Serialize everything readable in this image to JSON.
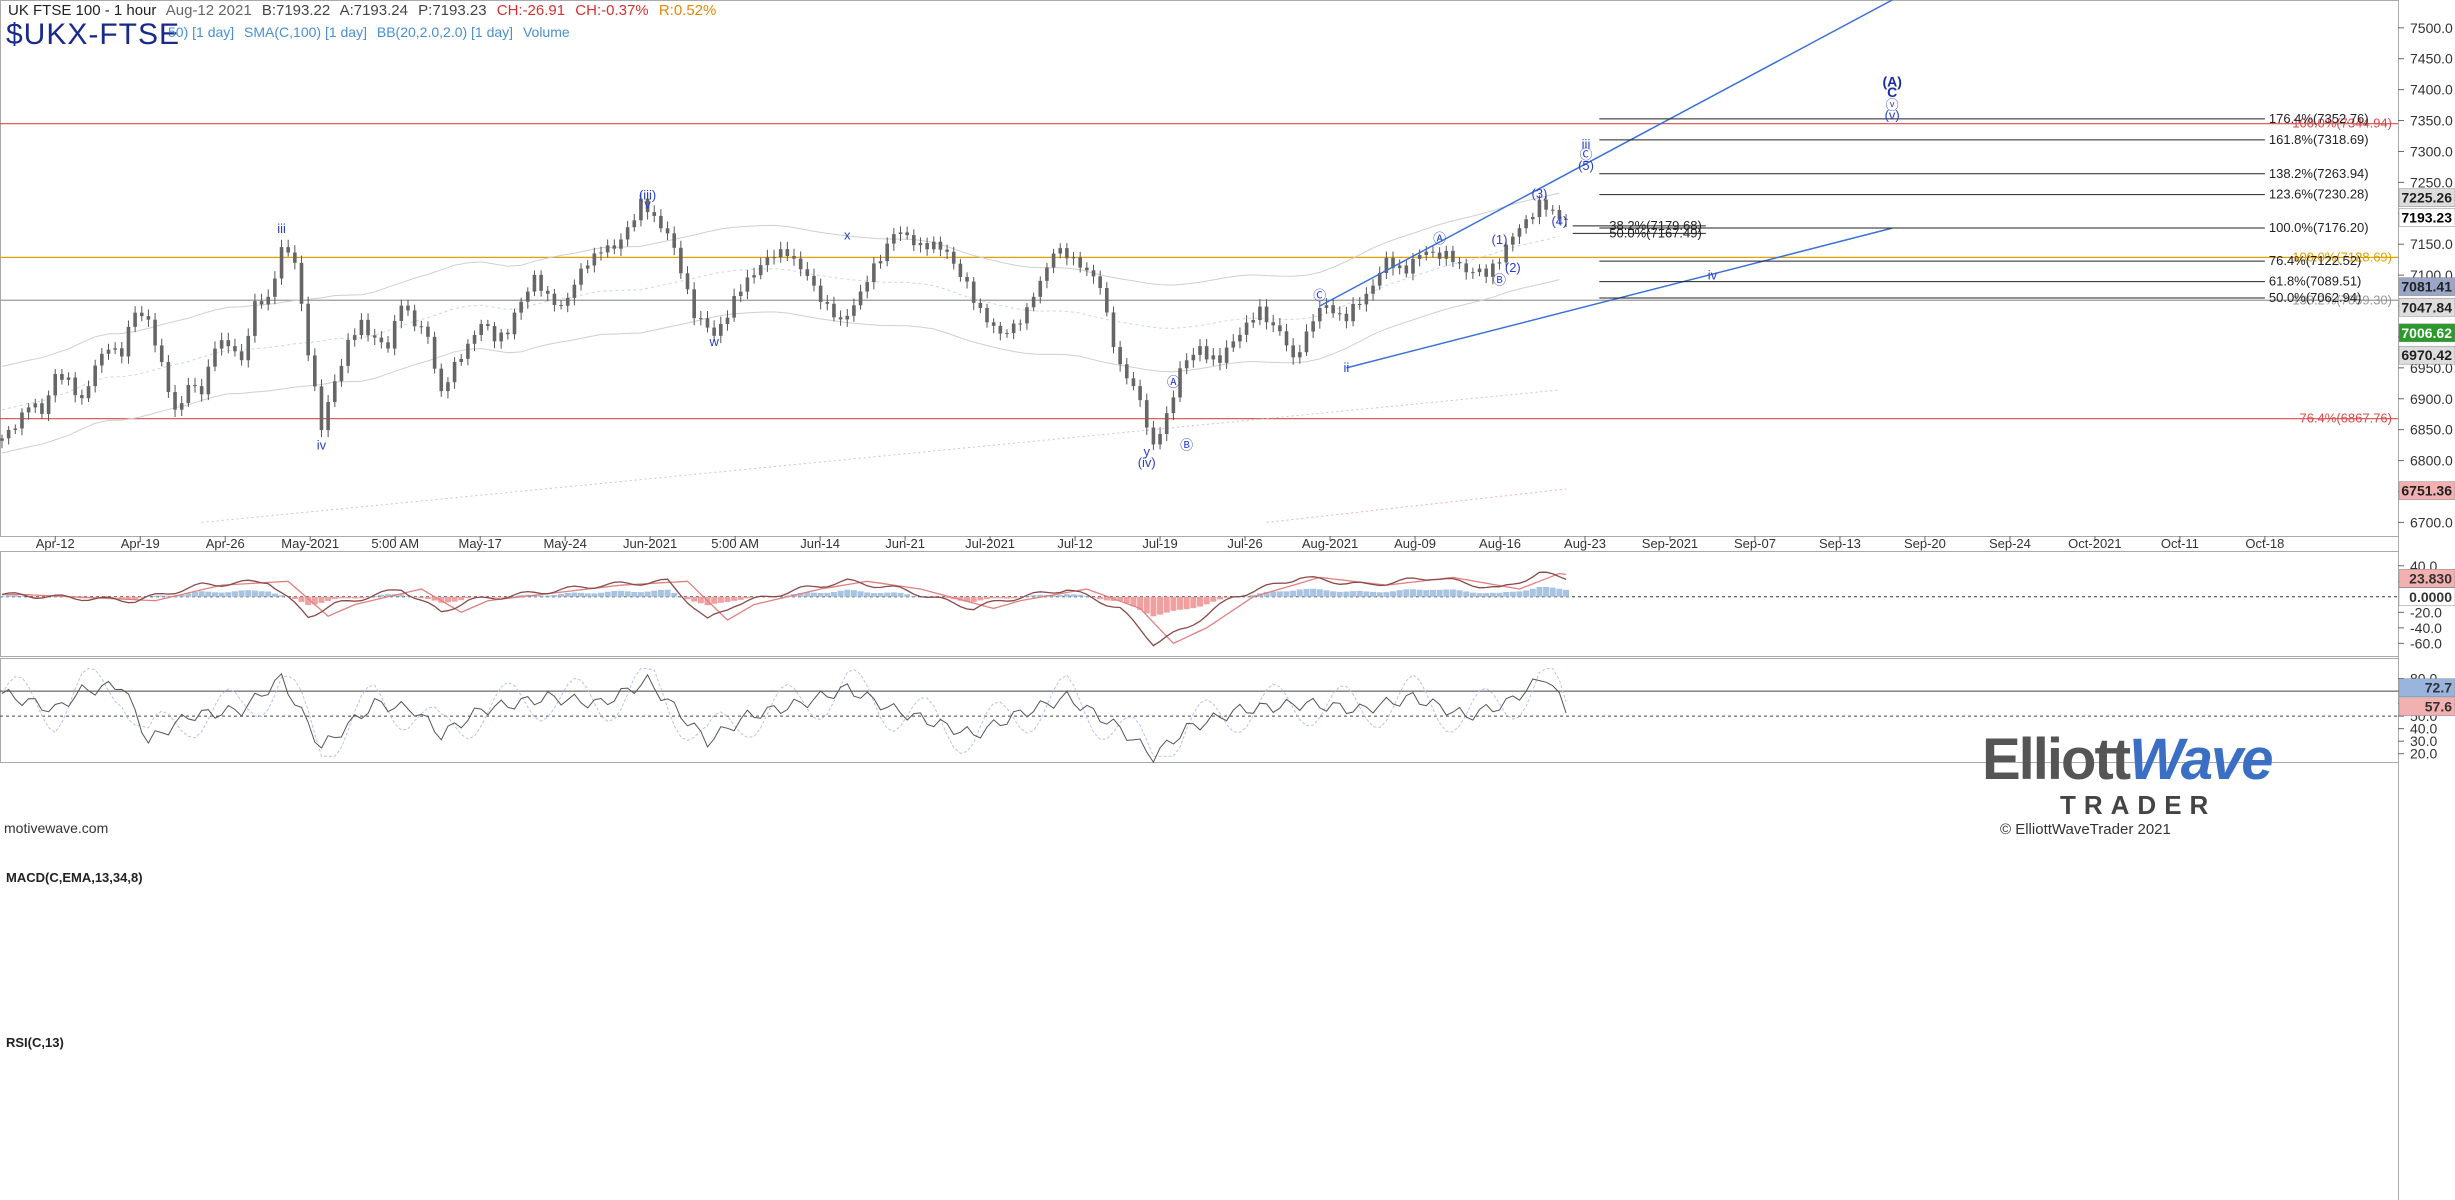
{
  "header": {
    "title": "UK FTSE 100 - 1 hour",
    "date": "Aug-12 2021",
    "bid": "B:7193.22",
    "ask": "A:7193.24",
    "price": "P:7193.23",
    "change": "CH:-26.91",
    "change_pct": "CH:-0.37%",
    "range": "R:0.52%",
    "symbol": "$UKX-FTSE"
  },
  "indicators": [
    "50) [1 day]",
    "SMA(C,100) [1 day]",
    "BB(20,2.0,2.0) [1 day]",
    "Volume"
  ],
  "colors": {
    "up": "#3a62d8",
    "down": "#d84b4b",
    "orange": "#e0a000",
    "wave": "#2a3fc8",
    "fib": "#111"
  },
  "chart_data": [
    {
      "type": "line",
      "title": "UK FTSE 100 - 1 hour",
      "ylim": [
        6678,
        7545
      ],
      "y_ticks": [
        6700,
        6750,
        6800,
        6850,
        6900,
        6950,
        7000,
        7050,
        7100,
        7150,
        7200,
        7250,
        7300,
        7350,
        7400,
        7450,
        7500
      ],
      "x_labels": [
        "Apr-12",
        "Apr-19",
        "Apr-26",
        "May-2021",
        "5:00 AM",
        "May-17",
        "May-24",
        "Jun-2021",
        "5:00 AM",
        "Jun-14",
        "Jun-21",
        "Jul-2021",
        "Jul-12",
        "Jul-19",
        "Jul-26",
        "Aug-2021",
        "Aug-09",
        "Aug-16",
        "Aug-23",
        "Sep-2021",
        "Sep-07",
        "Sep-13",
        "Sep-20",
        "Sep-24",
        "Oct-2021",
        "Oct-11",
        "Oct-18"
      ],
      "price_path": [
        [
          0,
          6832
        ],
        [
          2,
          6860
        ],
        [
          4,
          6890
        ],
        [
          6,
          6878
        ],
        [
          8,
          6940
        ],
        [
          10,
          6925
        ],
        [
          12,
          6900
        ],
        [
          14,
          6950
        ],
        [
          16,
          6985
        ],
        [
          18,
          6975
        ],
        [
          20,
          7040
        ],
        [
          22,
          7030
        ],
        [
          24,
          6950
        ],
        [
          26,
          6880
        ],
        [
          28,
          6920
        ],
        [
          30,
          6910
        ],
        [
          32,
          6990
        ],
        [
          34,
          6985
        ],
        [
          36,
          6965
        ],
        [
          38,
          7050
        ],
        [
          40,
          7060
        ],
        [
          42,
          7145
        ],
        [
          44,
          7120
        ],
        [
          46,
          6980
        ],
        [
          48,
          6850
        ],
        [
          50,
          6930
        ],
        [
          52,
          6990
        ],
        [
          54,
          7020
        ],
        [
          56,
          7000
        ],
        [
          58,
          6980
        ],
        [
          60,
          7060
        ],
        [
          62,
          7020
        ],
        [
          64,
          7000
        ],
        [
          66,
          6910
        ],
        [
          68,
          6950
        ],
        [
          70,
          6990
        ],
        [
          72,
          7020
        ],
        [
          74,
          7000
        ],
        [
          76,
          7010
        ],
        [
          80,
          7100
        ],
        [
          82,
          7060
        ],
        [
          84,
          7050
        ],
        [
          88,
          7120
        ],
        [
          90,
          7145
        ],
        [
          92,
          7140
        ],
        [
          96,
          7215
        ],
        [
          100,
          7170
        ],
        [
          104,
          7040
        ],
        [
          107,
          7000
        ],
        [
          110,
          7060
        ],
        [
          114,
          7120
        ],
        [
          118,
          7140
        ],
        [
          122,
          7080
        ],
        [
          126,
          7020
        ],
        [
          130,
          7090
        ],
        [
          134,
          7170
        ],
        [
          138,
          7150
        ],
        [
          142,
          7140
        ],
        [
          146,
          7060
        ],
        [
          150,
          7000
        ],
        [
          154,
          7040
        ],
        [
          158,
          7140
        ],
        [
          162,
          7120
        ],
        [
          165,
          7080
        ],
        [
          168,
          6950
        ],
        [
          171,
          6900
        ],
        [
          173,
          6820
        ],
        [
          175,
          6870
        ],
        [
          177,
          6950
        ],
        [
          180,
          6980
        ],
        [
          183,
          6960
        ],
        [
          186,
          7010
        ],
        [
          189,
          7040
        ],
        [
          192,
          7010
        ],
        [
          194,
          6960
        ],
        [
          197,
          7030
        ],
        [
          199,
          7050
        ],
        [
          202,
          7030
        ],
        [
          205,
          7070
        ],
        [
          208,
          7120
        ],
        [
          211,
          7110
        ],
        [
          214,
          7140
        ],
        [
          217,
          7130
        ],
        [
          220,
          7110
        ],
        [
          223,
          7100
        ],
        [
          226,
          7145
        ],
        [
          229,
          7190
        ],
        [
          231,
          7215
        ],
        [
          233,
          7200
        ],
        [
          235,
          7193
        ]
      ],
      "fib_levels": [
        {
          "label": "176.4%(7352.76)",
          "value": 7352.76
        },
        {
          "label": "161.8%(7318.69)",
          "value": 7318.69
        },
        {
          "label": "138.2%(7263.94)",
          "value": 7263.94
        },
        {
          "label": "123.6%(7230.28)",
          "value": 7230.28
        },
        {
          "label": "100.0%(7176.20)",
          "value": 7176.2
        },
        {
          "label": "76.4%(7122.52)",
          "value": 7122.52
        },
        {
          "label": "61.8%(7089.51)",
          "value": 7089.51
        },
        {
          "label": "50.0%(7062.94)",
          "value": 7062.94
        },
        {
          "label": "38.2%(7179.68)",
          "value": 7179.68
        },
        {
          "label": "50.0%(7167.49)",
          "value": 7167.49
        }
      ],
      "horizontal_levels": [
        {
          "label": "100.0%(7344.94)",
          "value": 7344.94,
          "color": "#d84b4b"
        },
        {
          "label": "100.0%(7128.69)",
          "value": 7128.69,
          "color": "#e0a000"
        },
        {
          "label": "138.2%(7059.30)",
          "value": 7059.3,
          "color": "#999999"
        },
        {
          "label": "76.4%(6867.76)",
          "value": 6867.76,
          "color": "#d84b4b"
        }
      ],
      "price_badges": [
        {
          "label": "7225.26",
          "value": 7225.26,
          "bg": "#dddddd",
          "fg": "#222"
        },
        {
          "label": "7193.23",
          "value": 7193.23,
          "bg": "#ffffff",
          "fg": "#000"
        },
        {
          "label": "7081.41",
          "value": 7081.41,
          "bg": "#9aa6c8",
          "fg": "#222"
        },
        {
          "label": "7047.84",
          "value": 7047.84,
          "bg": "#dddddd",
          "fg": "#222"
        },
        {
          "label": "7006.62",
          "value": 7006.62,
          "bg": "#2a9a2a",
          "fg": "#fff"
        },
        {
          "label": "6970.42",
          "value": 6970.42,
          "bg": "#dddddd",
          "fg": "#222"
        },
        {
          "label": "6751.36",
          "value": 6751.36,
          "bg": "#f3b0b0",
          "fg": "#222"
        }
      ],
      "wave_labels": [
        {
          "text": "iii",
          "x": 42,
          "y": 7168
        },
        {
          "text": "iv",
          "x": 48,
          "y": 6818
        },
        {
          "text": "(iii)",
          "x": 97,
          "y": 7222
        },
        {
          "text": "v",
          "x": 97,
          "y": 7208
        },
        {
          "text": "w",
          "x": 107,
          "y": 6985
        },
        {
          "text": "x",
          "x": 127,
          "y": 7158
        },
        {
          "text": "y",
          "x": 172,
          "y": 6807
        },
        {
          "text": "(iv)",
          "x": 172,
          "y": 6790
        },
        {
          "text": "Ⓐ",
          "x": 176,
          "y": 6920
        },
        {
          "text": "Ⓑ",
          "x": 178,
          "y": 6818
        },
        {
          "text": "Ⓒ",
          "x": 198,
          "y": 7060
        },
        {
          "text": "ii",
          "x": 202,
          "y": 6943
        },
        {
          "text": "Ⓐ",
          "x": 216,
          "y": 7152
        },
        {
          "text": "Ⓑ",
          "x": 225,
          "y": 7085
        },
        {
          "text": "(1)",
          "x": 225,
          "y": 7150
        },
        {
          "text": "(2)",
          "x": 227,
          "y": 7105
        },
        {
          "text": "(3)",
          "x": 231,
          "y": 7225
        },
        {
          "text": "(4)",
          "x": 234,
          "y": 7180
        },
        {
          "text": "iii",
          "x": 238,
          "y": 7305
        },
        {
          "text": "Ⓒ",
          "x": 238,
          "y": 7288
        },
        {
          "text": "(5)",
          "x": 238,
          "y": 7270
        },
        {
          "text": "iv",
          "x": 257,
          "y": 7093
        },
        {
          "text": "(A)",
          "x": 284,
          "y": 7405
        },
        {
          "text": "C",
          "x": 284,
          "y": 7388
        },
        {
          "text": "ⓥ",
          "x": 284,
          "y": 7368
        },
        {
          "text": "(v)",
          "x": 284,
          "y": 7352
        }
      ],
      "trendlines": [
        {
          "from": [
            198,
            7050
          ],
          "to": [
            284,
            7545
          ]
        },
        {
          "from": [
            202,
            6950
          ],
          "to": [
            284,
            7176
          ]
        }
      ]
    },
    {
      "type": "bar",
      "title": "MACD(C,EMA,13,34,8)",
      "ylim": [
        -75,
        50
      ],
      "y_ticks": [
        40,
        20,
        -20,
        -40,
        -60
      ],
      "y_tick_labels": [
        "40.0",
        "20.0",
        "-20.0",
        "-40.0",
        "-60.0"
      ],
      "macd": [
        [
          0,
          3
        ],
        [
          20,
          -5
        ],
        [
          30,
          15
        ],
        [
          40,
          20
        ],
        [
          46,
          -25
        ],
        [
          50,
          -10
        ],
        [
          60,
          10
        ],
        [
          66,
          -20
        ],
        [
          70,
          -5
        ],
        [
          80,
          5
        ],
        [
          90,
          15
        ],
        [
          100,
          20
        ],
        [
          106,
          -30
        ],
        [
          110,
          -10
        ],
        [
          120,
          10
        ],
        [
          127,
          20
        ],
        [
          135,
          10
        ],
        [
          146,
          -15
        ],
        [
          150,
          -5
        ],
        [
          160,
          10
        ],
        [
          168,
          -15
        ],
        [
          173,
          -60
        ],
        [
          178,
          -40
        ],
        [
          185,
          0
        ],
        [
          195,
          25
        ],
        [
          205,
          15
        ],
        [
          215,
          25
        ],
        [
          225,
          10
        ],
        [
          231,
          30
        ],
        [
          235,
          25
        ]
      ],
      "badge_value": "23.830",
      "zero_label": "0.0000"
    },
    {
      "type": "line",
      "title": "RSI(C,13)",
      "ylim": [
        15,
        90
      ],
      "y_ticks": [
        80,
        70,
        60,
        50,
        40,
        30,
        20
      ],
      "y_tick_labels": [
        "80.0",
        "70.0",
        "60.0",
        "50.0",
        "40.0",
        "30.0",
        "20.0"
      ],
      "rsi": [
        [
          0,
          68
        ],
        [
          8,
          55
        ],
        [
          12,
          70
        ],
        [
          18,
          75
        ],
        [
          22,
          30
        ],
        [
          28,
          50
        ],
        [
          36,
          55
        ],
        [
          42,
          80
        ],
        [
          48,
          25
        ],
        [
          56,
          60
        ],
        [
          62,
          55
        ],
        [
          66,
          35
        ],
        [
          72,
          55
        ],
        [
          82,
          65
        ],
        [
          90,
          60
        ],
        [
          97,
          78
        ],
        [
          106,
          30
        ],
        [
          112,
          50
        ],
        [
          120,
          60
        ],
        [
          127,
          72
        ],
        [
          134,
          55
        ],
        [
          146,
          35
        ],
        [
          152,
          50
        ],
        [
          160,
          65
        ],
        [
          168,
          40
        ],
        [
          173,
          18
        ],
        [
          178,
          40
        ],
        [
          186,
          55
        ],
        [
          196,
          60
        ],
        [
          204,
          55
        ],
        [
          212,
          65
        ],
        [
          220,
          50
        ],
        [
          226,
          60
        ],
        [
          232,
          82
        ],
        [
          235,
          55
        ]
      ],
      "overbought": 70,
      "midline": 50,
      "badges": [
        {
          "label": "72.7",
          "value": 72.7
        },
        {
          "label": "57.6",
          "value": 57.6
        }
      ]
    }
  ],
  "logo": {
    "line1_a": "Elliott",
    "line1_b": "Wave",
    "line2": "TRADER",
    "line3": "© ElliottWaveTrader 2021"
  },
  "watermark": "motivewave.com"
}
